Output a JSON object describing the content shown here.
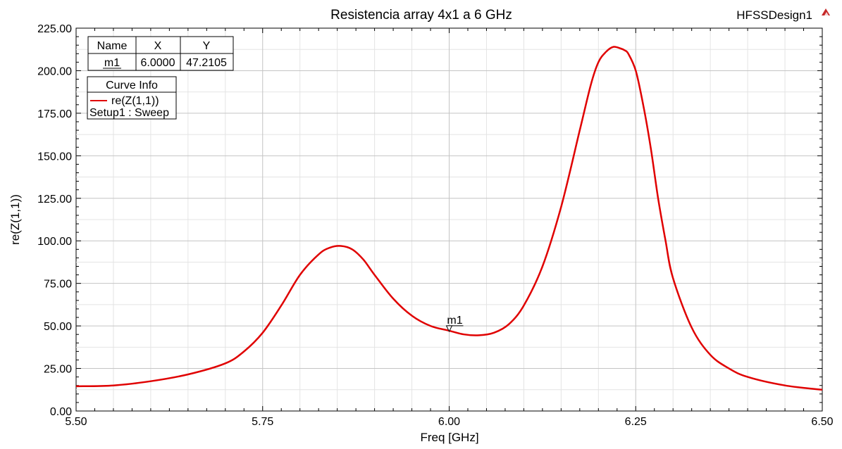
{
  "chart_data": {
    "type": "line",
    "title": "Resistencia array 4x1 a 6 GHz",
    "design_name": "HFSSDesign1",
    "xlabel": "Freq [GHz]",
    "ylabel": "re(Z(1,1))",
    "xlim": [
      5.5,
      6.5
    ],
    "ylim": [
      0,
      225
    ],
    "x_ticks": [
      5.5,
      5.75,
      6.0,
      6.25,
      6.5
    ],
    "x_tick_labels": [
      "5.50",
      "5.75",
      "6.00",
      "6.25",
      "6.50"
    ],
    "y_ticks": [
      0,
      25,
      50,
      75,
      100,
      125,
      150,
      175,
      200,
      225
    ],
    "y_tick_labels": [
      "0.00",
      "25.00",
      "50.00",
      "75.00",
      "100.00",
      "125.00",
      "150.00",
      "175.00",
      "200.00",
      "225.00"
    ],
    "grid": true,
    "series": [
      {
        "name": "re(Z(1,1))",
        "setup": "Setup1 : Sweep",
        "color": "#e00000",
        "x": [
          5.5,
          5.55,
          5.6,
          5.65,
          5.7,
          5.725,
          5.75,
          5.775,
          5.8,
          5.825,
          5.84,
          5.855,
          5.87,
          5.885,
          5.9,
          5.925,
          5.95,
          5.975,
          6.0,
          6.02,
          6.04,
          6.06,
          6.08,
          6.1,
          6.125,
          6.15,
          6.175,
          6.19,
          6.2,
          6.21,
          6.22,
          6.23,
          6.235,
          6.24,
          6.25,
          6.26,
          6.27,
          6.28,
          6.29,
          6.3,
          6.325,
          6.35,
          6.375,
          6.4,
          6.45,
          6.5
        ],
        "y": [
          14.5,
          15.0,
          17.5,
          21.5,
          28.0,
          35.0,
          46.0,
          62.0,
          80.0,
          92.0,
          96.0,
          97.0,
          95.0,
          89.0,
          80.0,
          66.0,
          56.0,
          50.0,
          47.2,
          45.0,
          44.5,
          46.0,
          51.0,
          62.0,
          85.0,
          120.0,
          165.0,
          192.0,
          205.0,
          211.0,
          214.0,
          213.0,
          212.0,
          210.0,
          200.0,
          180.0,
          155.0,
          125.0,
          100.0,
          78.0,
          49.0,
          33.0,
          25.0,
          20.0,
          15.0,
          12.5
        ]
      }
    ],
    "markers": [
      {
        "name": "m1",
        "x": 6.0,
        "y": 47.2105,
        "x_text": "6.0000",
        "y_text": "47.2105"
      }
    ],
    "marker_table": {
      "headers": [
        "Name",
        "X",
        "Y"
      ],
      "rows": [
        [
          "m1",
          "6.0000",
          "47.2105"
        ]
      ]
    },
    "curve_info": {
      "header": "Curve Info",
      "entry": "re(Z(1,1))",
      "setup": "Setup1 : Sweep"
    }
  }
}
